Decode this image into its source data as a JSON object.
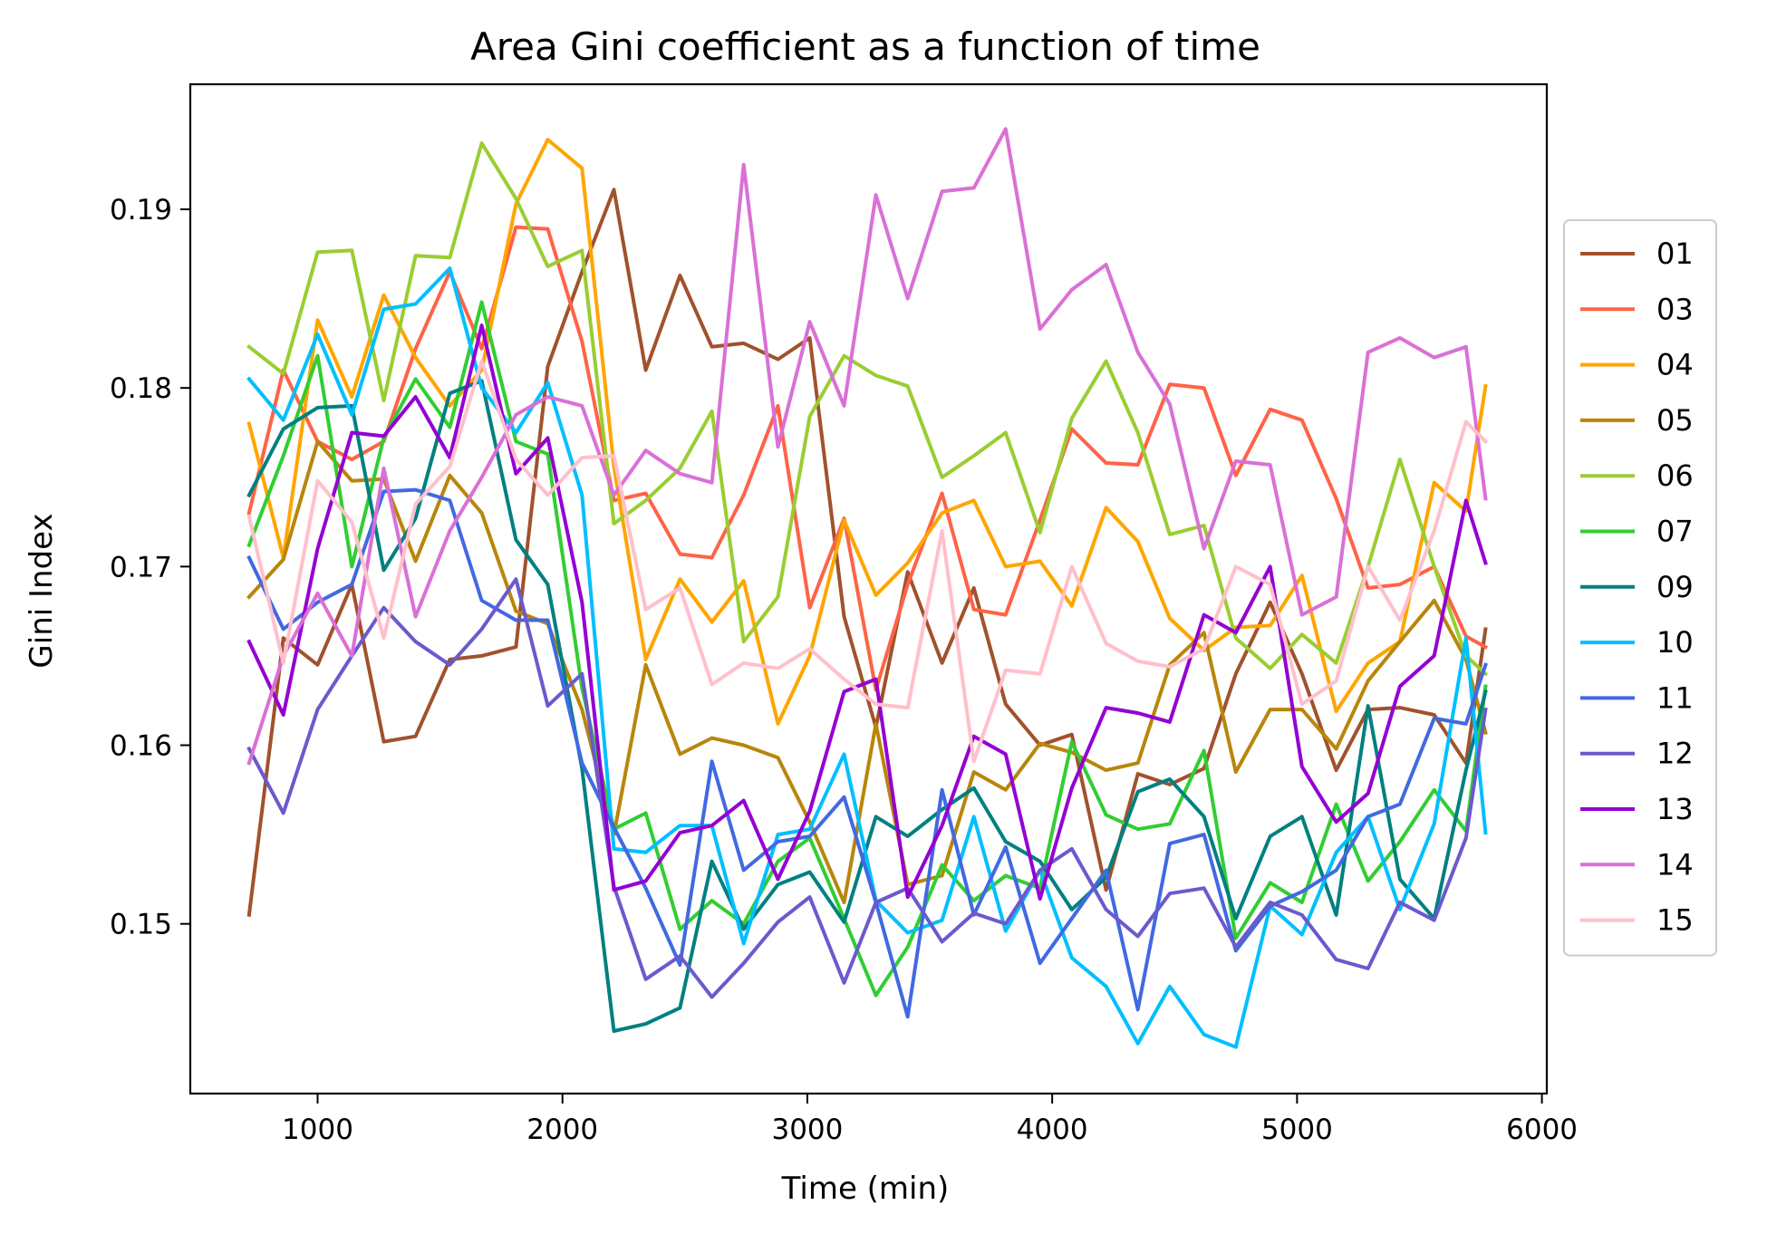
{
  "chart_data": {
    "type": "line",
    "title": "Area Gini coefficient as a function of time",
    "xlabel": "Time (min)",
    "ylabel": "Gini Index",
    "xlim": [
      480,
      6020
    ],
    "ylim": [
      0.1405,
      0.197
    ],
    "xticks": [
      1000,
      2000,
      3000,
      4000,
      5000,
      6000
    ],
    "xtick_labels": [
      "1000",
      "2000",
      "3000",
      "4000",
      "5000",
      "6000"
    ],
    "yticks": [
      0.15,
      0.16,
      0.17,
      0.18,
      0.19
    ],
    "ytick_labels": [
      "0.15",
      "0.16",
      "0.17",
      "0.18",
      "0.19"
    ],
    "grid": false,
    "legend_position": "outside-right",
    "x": [
      720,
      860,
      1000,
      1140,
      1270,
      1400,
      1540,
      1670,
      1810,
      1940,
      2080,
      2210,
      2340,
      2480,
      2610,
      2740,
      2880,
      3010,
      3150,
      3280,
      3410,
      3550,
      3680,
      3810,
      3950,
      4080,
      4220,
      4350,
      4480,
      4620,
      4750,
      4890,
      5020,
      5160,
      5290,
      5420,
      5560,
      5690,
      5770
    ],
    "series": [
      {
        "name": "01",
        "color": "#A0522D",
        "values": [
          0.1505,
          0.166,
          0.1645,
          0.169,
          0.1602,
          0.1605,
          0.1648,
          0.165,
          0.1655,
          0.1812,
          0.1865,
          0.1911,
          0.181,
          0.1863,
          0.1823,
          0.1825,
          0.1816,
          0.1828,
          0.1672,
          0.161,
          0.1697,
          0.1646,
          0.1688,
          0.1623,
          0.16,
          0.1606,
          0.1519,
          0.1584,
          0.1578,
          0.1587,
          0.164,
          0.168,
          0.164,
          0.1586,
          0.162,
          0.1621,
          0.1617,
          0.159,
          0.1665
        ]
      },
      {
        "name": "03",
        "color": "#FF6347",
        "values": [
          0.173,
          0.181,
          0.177,
          0.176,
          0.177,
          0.1822,
          0.1865,
          0.1822,
          0.189,
          0.1889,
          0.1826,
          0.1737,
          0.1741,
          0.1707,
          0.1705,
          0.174,
          0.179,
          0.1677,
          0.1727,
          0.1631,
          0.169,
          0.1741,
          0.1676,
          0.1673,
          0.1726,
          0.1777,
          0.1758,
          0.1757,
          0.1802,
          0.18,
          0.1751,
          0.1788,
          0.1782,
          0.1738,
          0.1688,
          0.169,
          0.17,
          0.1661,
          0.1655
        ]
      },
      {
        "name": "04",
        "color": "#FFA500",
        "values": [
          0.178,
          0.1705,
          0.1838,
          0.1795,
          0.1852,
          0.1817,
          0.179,
          0.181,
          0.1903,
          0.1939,
          0.1923,
          0.1756,
          0.1648,
          0.1693,
          0.1669,
          0.1692,
          0.1612,
          0.165,
          0.1726,
          0.1684,
          0.1702,
          0.173,
          0.1737,
          0.17,
          0.1703,
          0.1678,
          0.1733,
          0.1714,
          0.1671,
          0.1653,
          0.1666,
          0.1667,
          0.1695,
          0.1619,
          0.1646,
          0.1658,
          0.1747,
          0.1731,
          0.1801
        ]
      },
      {
        "name": "05",
        "color": "#B8860B",
        "values": [
          0.1683,
          0.1704,
          0.177,
          0.1748,
          0.1749,
          0.1703,
          0.1751,
          0.173,
          0.1675,
          0.1668,
          0.162,
          0.155,
          0.1645,
          0.1595,
          0.1604,
          0.16,
          0.1593,
          0.1557,
          0.1512,
          0.1612,
          0.1522,
          0.1527,
          0.1585,
          0.1575,
          0.1601,
          0.1596,
          0.1586,
          0.159,
          0.1645,
          0.1663,
          0.1585,
          0.162,
          0.162,
          0.1598,
          0.1636,
          0.1658,
          0.1681,
          0.1648,
          0.1607
        ]
      },
      {
        "name": "06",
        "color": "#9ACD32",
        "values": [
          0.1823,
          0.1808,
          0.1876,
          0.1877,
          0.1793,
          0.1874,
          0.1873,
          0.1937,
          0.1906,
          0.1868,
          0.1877,
          0.1724,
          0.1737,
          0.1755,
          0.1787,
          0.1658,
          0.1683,
          0.1784,
          0.1818,
          0.1807,
          0.1801,
          0.175,
          0.1762,
          0.1775,
          0.1719,
          0.1783,
          0.1815,
          0.1775,
          0.1718,
          0.1723,
          0.166,
          0.1643,
          0.1662,
          0.1646,
          0.17,
          0.176,
          0.17,
          0.165,
          0.164
        ]
      },
      {
        "name": "07",
        "color": "#32CD32",
        "values": [
          0.1712,
          0.1762,
          0.1818,
          0.17,
          0.1772,
          0.1805,
          0.1778,
          0.1848,
          0.177,
          0.1763,
          0.1632,
          0.1553,
          0.1562,
          0.1497,
          0.1513,
          0.15,
          0.1535,
          0.1548,
          0.1503,
          0.146,
          0.1487,
          0.1533,
          0.1513,
          0.1527,
          0.152,
          0.1602,
          0.1561,
          0.1553,
          0.1556,
          0.1597,
          0.1492,
          0.1523,
          0.1512,
          0.1567,
          0.1524,
          0.1546,
          0.1575,
          0.1552,
          0.1633
        ]
      },
      {
        "name": "09",
        "color": "#008080",
        "values": [
          0.174,
          0.1777,
          0.1789,
          0.179,
          0.1698,
          0.1727,
          0.1797,
          0.1804,
          0.1715,
          0.169,
          0.1587,
          0.144,
          0.1444,
          0.1453,
          0.1535,
          0.1497,
          0.1522,
          0.1529,
          0.1501,
          0.156,
          0.1549,
          0.1564,
          0.1576,
          0.1546,
          0.1535,
          0.1508,
          0.1526,
          0.1574,
          0.1581,
          0.156,
          0.1503,
          0.1549,
          0.156,
          0.1505,
          0.1622,
          0.1525,
          0.1503,
          0.1586,
          0.163
        ]
      },
      {
        "name": "10",
        "color": "#00BFFF",
        "values": [
          0.1805,
          0.1782,
          0.183,
          0.1785,
          0.1844,
          0.1847,
          0.1867,
          0.18,
          0.1775,
          0.1803,
          0.174,
          0.1542,
          0.154,
          0.1555,
          0.1555,
          0.1489,
          0.155,
          0.1553,
          0.1595,
          0.1513,
          0.1495,
          0.1502,
          0.156,
          0.1496,
          0.153,
          0.1481,
          0.1465,
          0.1433,
          0.1465,
          0.1438,
          0.1431,
          0.151,
          0.1494,
          0.154,
          0.156,
          0.1508,
          0.1556,
          0.166,
          0.1551
        ]
      },
      {
        "name": "11",
        "color": "#4169E1",
        "values": [
          0.1705,
          0.1665,
          0.168,
          0.169,
          0.1742,
          0.1743,
          0.1737,
          0.1681,
          0.167,
          0.167,
          0.159,
          0.1554,
          0.152,
          0.1477,
          0.1591,
          0.153,
          0.1546,
          0.1549,
          0.1571,
          0.1512,
          0.1448,
          0.1575,
          0.1505,
          0.1543,
          0.1478,
          0.1503,
          0.153,
          0.1452,
          0.1545,
          0.155,
          0.1485,
          0.151,
          0.1518,
          0.153,
          0.156,
          0.1567,
          0.1615,
          0.1612,
          0.1645
        ]
      },
      {
        "name": "12",
        "color": "#6A5ACD",
        "values": [
          0.1598,
          0.1562,
          0.162,
          0.165,
          0.1677,
          0.1658,
          0.1645,
          0.1665,
          0.1693,
          0.1622,
          0.164,
          0.1521,
          0.1469,
          0.1482,
          0.1459,
          0.1478,
          0.1501,
          0.1515,
          0.1467,
          0.1512,
          0.152,
          0.149,
          0.1506,
          0.15,
          0.153,
          0.1542,
          0.1508,
          0.1493,
          0.1517,
          0.152,
          0.1487,
          0.1512,
          0.1505,
          0.148,
          0.1475,
          0.1512,
          0.1502,
          0.1548,
          0.162
        ]
      },
      {
        "name": "13",
        "color": "#9400D3",
        "values": [
          0.1658,
          0.1617,
          0.171,
          0.1775,
          0.1773,
          0.1795,
          0.1761,
          0.1835,
          0.1752,
          0.1772,
          0.168,
          0.1519,
          0.1524,
          0.1551,
          0.1555,
          0.1569,
          0.1525,
          0.1563,
          0.163,
          0.1637,
          0.1515,
          0.1555,
          0.1605,
          0.1595,
          0.1514,
          0.1576,
          0.1621,
          0.1618,
          0.1613,
          0.1673,
          0.1663,
          0.17,
          0.1588,
          0.1557,
          0.1573,
          0.1633,
          0.165,
          0.1737,
          0.1702
        ]
      },
      {
        "name": "14",
        "color": "#DA70D6",
        "values": [
          0.159,
          0.165,
          0.1685,
          0.165,
          0.1755,
          0.1672,
          0.172,
          0.175,
          0.1785,
          0.1795,
          0.179,
          0.174,
          0.1765,
          0.1752,
          0.1747,
          0.1925,
          0.1767,
          0.1837,
          0.179,
          0.1908,
          0.185,
          0.191,
          0.1912,
          0.1945,
          0.1833,
          0.1855,
          0.1869,
          0.182,
          0.1791,
          0.171,
          0.1759,
          0.1757,
          0.1673,
          0.1683,
          0.182,
          0.1828,
          0.1817,
          0.1823,
          0.1738
        ]
      },
      {
        "name": "15",
        "color": "#FFC0CB",
        "values": [
          0.1728,
          0.1646,
          0.1748,
          0.1725,
          0.166,
          0.1735,
          0.1756,
          0.1815,
          0.176,
          0.174,
          0.1761,
          0.1762,
          0.1676,
          0.1688,
          0.1634,
          0.1646,
          0.1643,
          0.1654,
          0.1637,
          0.1623,
          0.1621,
          0.172,
          0.1591,
          0.1642,
          0.164,
          0.17,
          0.1657,
          0.1647,
          0.1644,
          0.1654,
          0.17,
          0.169,
          0.1623,
          0.1636,
          0.17,
          0.167,
          0.172,
          0.1781,
          0.177
        ]
      }
    ]
  }
}
